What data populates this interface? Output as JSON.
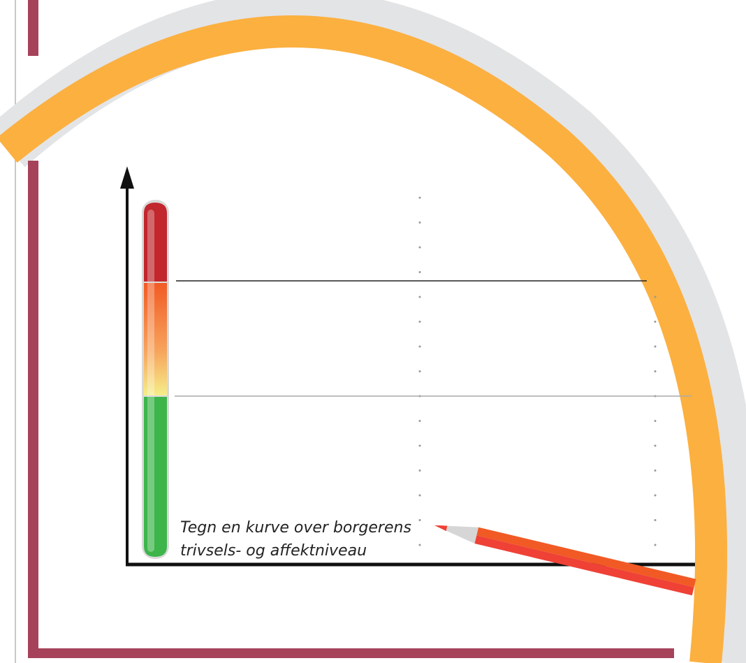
{
  "caption": {
    "lines": [
      "Tegn en kurve over borgerens",
      "trivsels- og affektniveau"
    ]
  }
}
